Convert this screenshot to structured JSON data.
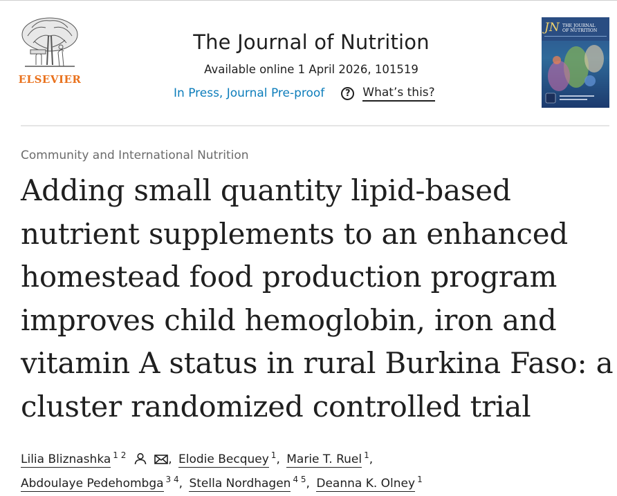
{
  "publisher": {
    "name": "ELSEVIER",
    "logo_icon": "elsevier-tree-icon",
    "brand_color": "#e9711c"
  },
  "journal": {
    "title": "The Journal of Nutrition",
    "available": "Available online 1 April 2026, 101519",
    "status_link": "In Press, Journal Pre-proof",
    "help_icon": "question-circle-icon",
    "help_label": "What’s this?",
    "link_color": "#0c7dbb",
    "cover": {
      "abbrev": "JN",
      "line1": "THE JOURNAL",
      "line2": "OF NUTRITION"
    }
  },
  "article": {
    "section": "Community and International Nutrition",
    "title": "Adding small quantity lipid-based nutrient supplements to an enhanced homestead food production program improves child hemoglobin, iron and vitamin A status in rural Burkina Faso: a cluster randomized controlled trial"
  },
  "authors": [
    {
      "name": "Lilia Bliznashka",
      "aff": "1 2",
      "icons": [
        "person-icon",
        "envelope-icon"
      ],
      "sep": ","
    },
    {
      "name": "Elodie Becquey",
      "aff": "1",
      "sep": ","
    },
    {
      "name": "Marie T. Ruel",
      "aff": "1",
      "sep": ","
    },
    {
      "name": "Abdoulaye Pedehombga",
      "aff": "3 4",
      "sep": ","
    },
    {
      "name": "Stella Nordhagen",
      "aff": "4 5",
      "sep": ","
    },
    {
      "name": "Deanna K. Olney",
      "aff": "1",
      "sep": ""
    }
  ]
}
